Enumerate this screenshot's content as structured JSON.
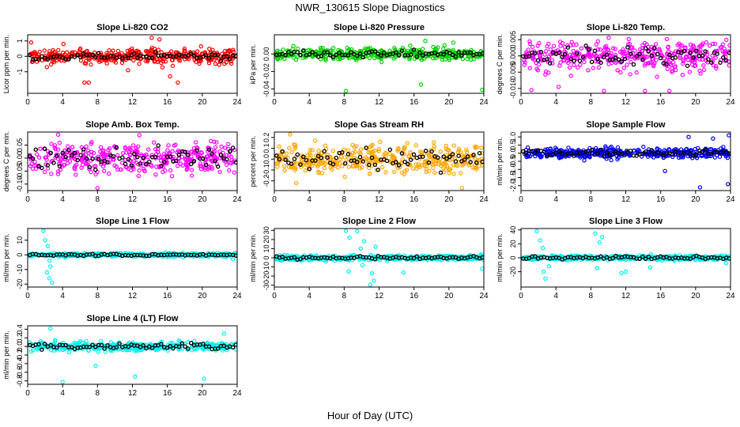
{
  "figure": {
    "title": "NWR_130615  Slope Diagnostics",
    "xlabel": "Hour of Day (UTC)"
  },
  "chart_data": [
    {
      "type": "scatter",
      "title": "Slope Li-820 CO2",
      "ylabel": "Licor ppm per min.",
      "color": "#ff0000",
      "xlim": [
        0,
        24
      ],
      "ylim": [
        -2.4,
        1.4
      ],
      "yticks": [
        -1,
        0,
        1
      ],
      "xticks": [
        0,
        4,
        8,
        12,
        16,
        20,
        24
      ],
      "spread": 0.45,
      "highlight_spread": 0.2,
      "outliers": [
        [
          0.4,
          0.9
        ],
        [
          2.2,
          -0.7
        ],
        [
          6.5,
          -1.7
        ],
        [
          7.0,
          -1.7
        ],
        [
          14.2,
          1.2
        ],
        [
          15.1,
          1.1
        ],
        [
          16.3,
          -1.3
        ],
        [
          17.2,
          -1.7
        ],
        [
          11.5,
          -0.9
        ],
        [
          4.1,
          0.8
        ]
      ]
    },
    {
      "type": "scatter",
      "title": "Slope Li-820 Pressure",
      "ylabel": "kPa per min.",
      "color": "#00d000",
      "xlim": [
        0,
        24
      ],
      "ylim": [
        -0.045,
        0.022
      ],
      "yticks": [
        -0.04,
        -0.02,
        0.0
      ],
      "xticks": [
        0,
        4,
        8,
        12,
        16,
        20,
        24
      ],
      "spread": 0.006,
      "highlight_spread": 0.004,
      "outliers": [
        [
          8.2,
          -0.043
        ],
        [
          16.8,
          -0.035
        ],
        [
          23.8,
          -0.041
        ],
        [
          19.5,
          0.01
        ],
        [
          20.5,
          0.013
        ],
        [
          17.3,
          0.015
        ]
      ]
    },
    {
      "type": "scatter",
      "title": "Slope Li-820 Temp.",
      "ylabel": "degrees C per min.",
      "color": "#ff00ff",
      "xlim": [
        0,
        24
      ],
      "ylim": [
        -0.0115,
        0.0065
      ],
      "yticks": [
        -0.01,
        -0.005,
        0.0,
        0.005
      ],
      "xticks": [
        0,
        4,
        8,
        12,
        16,
        20,
        24
      ],
      "spread": 0.0045,
      "highlight_spread": 0.003,
      "outliers": [
        [
          1.2,
          -0.0105
        ],
        [
          4.3,
          -0.0095
        ],
        [
          9.5,
          -0.011
        ],
        [
          14.2,
          -0.0108
        ],
        [
          17.0,
          -0.011
        ]
      ]
    },
    {
      "type": "scatter",
      "title": "Slope Amb. Box Temp.",
      "ylabel": "degrees C per min.",
      "color": "#ff00ff",
      "xlim": [
        0,
        24
      ],
      "ylim": [
        -0.125,
        0.1
      ],
      "yticks": [
        -0.1,
        -0.05,
        0.0,
        0.05
      ],
      "xticks": [
        0,
        4,
        8,
        12,
        16,
        20,
        24
      ],
      "spread": 0.055,
      "highlight_spread": 0.04,
      "outliers": [
        [
          8.0,
          -0.12
        ],
        [
          3.5,
          0.09
        ],
        [
          12.8,
          0.088
        ]
      ]
    },
    {
      "type": "scatter",
      "title": "Slope Gas Stream RH",
      "ylabel": "percent per min.",
      "color": "#ffa500",
      "xlim": [
        0,
        24
      ],
      "ylim": [
        -0.29,
        0.25
      ],
      "yticks": [
        -0.2,
        -0.1,
        0.0,
        0.1,
        0.2
      ],
      "xticks": [
        0,
        4,
        8,
        12,
        16,
        20,
        24
      ],
      "spread": 0.13,
      "highlight_spread": 0.09,
      "outliers": [
        [
          1.8,
          0.24
        ],
        [
          21.5,
          -0.27
        ],
        [
          2.5,
          -0.22
        ]
      ]
    },
    {
      "type": "scatter",
      "title": "Slope Sample Flow",
      "ylabel": "ml/min per min.",
      "color": "#0000ff",
      "xlim": [
        0,
        24
      ],
      "ylim": [
        -2.3,
        1.3
      ],
      "yticks": [
        -2.0,
        -1.5,
        -1.0,
        -0.5,
        0.0,
        0.5,
        1.0
      ],
      "xticks": [
        0,
        4,
        8,
        12,
        16,
        20,
        24
      ],
      "spread": 0.3,
      "highlight_spread": 0.2,
      "outliers": [
        [
          20.5,
          -2.1
        ],
        [
          23.7,
          -1.9
        ],
        [
          19.2,
          1.0
        ],
        [
          22.0,
          0.9
        ],
        [
          23.8,
          1.1
        ],
        [
          16.5,
          -1.1
        ]
      ]
    },
    {
      "type": "scatter",
      "title": "Slope Line 1 Flow",
      "ylabel": "ml/min per min.",
      "color": "#00f0f0",
      "xlim": [
        0,
        24
      ],
      "ylim": [
        -22,
        18
      ],
      "yticks": [
        -20,
        -10,
        0,
        10
      ],
      "xticks": [
        0,
        4,
        8,
        12,
        16,
        20,
        24
      ],
      "spread": 1.2,
      "highlight_spread": 0.6,
      "outliers": [
        [
          1.8,
          17
        ],
        [
          2.0,
          10
        ],
        [
          2.3,
          6
        ],
        [
          2.5,
          -4
        ],
        [
          2.6,
          -8
        ],
        [
          2.2,
          -12
        ],
        [
          2.5,
          -16
        ],
        [
          2.8,
          -19
        ],
        [
          23.5,
          -3
        ]
      ]
    },
    {
      "type": "scatter",
      "title": "Slope Line 2 Flow",
      "ylabel": "ml/min per min.",
      "color": "#00f0f0",
      "xlim": [
        0,
        24
      ],
      "ylim": [
        -32,
        32
      ],
      "yticks": [
        -30,
        -20,
        -10,
        0,
        10,
        20,
        30
      ],
      "xticks": [
        0,
        4,
        8,
        12,
        16,
        20,
        24
      ],
      "spread": 2.5,
      "highlight_spread": 1.5,
      "outliers": [
        [
          8.2,
          30
        ],
        [
          8.6,
          22
        ],
        [
          8.5,
          -15
        ],
        [
          9.5,
          29
        ],
        [
          10.1,
          -8
        ],
        [
          10.3,
          18
        ],
        [
          11.0,
          -30
        ],
        [
          11.4,
          -25
        ],
        [
          11.6,
          12
        ],
        [
          11.2,
          -17
        ],
        [
          14.8,
          -16
        ],
        [
          23.8,
          -12
        ],
        [
          9.9,
          10
        ]
      ]
    },
    {
      "type": "scatter",
      "title": "Slope Line 3 Flow",
      "ylabel": "ml/min per min.",
      "color": "#00f0f0",
      "xlim": [
        0,
        24
      ],
      "ylim": [
        -42,
        42
      ],
      "yticks": [
        -20,
        0,
        20,
        40
      ],
      "xticks": [
        0,
        4,
        8,
        12,
        16,
        20,
        24
      ],
      "spread": 3,
      "highlight_spread": 2,
      "outliers": [
        [
          1.8,
          38
        ],
        [
          2.2,
          25
        ],
        [
          2.5,
          14
        ],
        [
          2.6,
          -20
        ],
        [
          2.8,
          -30
        ],
        [
          3.2,
          -12
        ],
        [
          8.5,
          35
        ],
        [
          9.3,
          30
        ],
        [
          8.7,
          -15
        ],
        [
          11.5,
          -22
        ],
        [
          12.0,
          -20
        ],
        [
          9.0,
          22
        ],
        [
          14.8,
          -14
        ],
        [
          23.5,
          -8
        ]
      ]
    },
    {
      "type": "scatter",
      "title": "Slope Line 4 (LT) Flow",
      "ylabel": "ml/min per min.",
      "color": "#00f0f0",
      "xlim": [
        0,
        24
      ],
      "ylim": [
        -0.88,
        0.48
      ],
      "yticks": [
        -0.8,
        -0.6,
        -0.4,
        -0.2,
        0.0,
        0.2,
        0.4
      ],
      "xticks": [
        0,
        4,
        8,
        12,
        16,
        20,
        24
      ],
      "spread": 0.1,
      "highlight_spread": 0.07,
      "outliers": [
        [
          2.6,
          0.42
        ],
        [
          4.0,
          -0.85
        ],
        [
          12.3,
          -0.7
        ],
        [
          20.2,
          -0.75
        ],
        [
          7.8,
          -0.45
        ],
        [
          22.5,
          0.3
        ]
      ]
    }
  ]
}
